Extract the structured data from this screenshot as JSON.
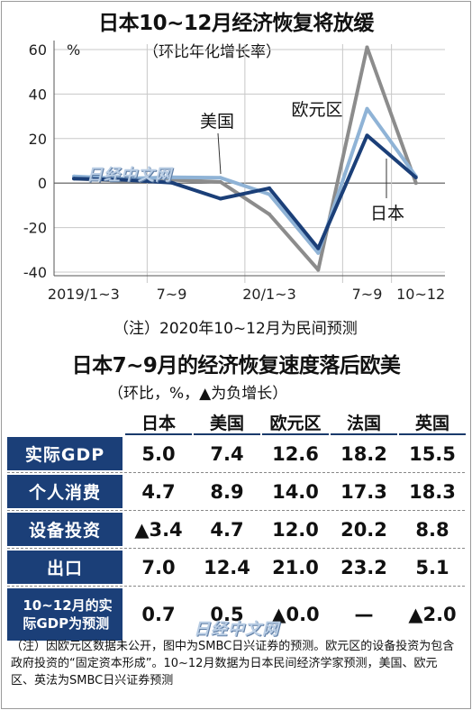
{
  "chart": {
    "title": "日本10~12月经济恢复将放缓",
    "subtitle": "（环比年化增长率）",
    "unit": "%",
    "note": "（注）2020年10~12月为民间预测",
    "watermark": "日经中文网"
  },
  "chart_data": {
    "type": "line",
    "title": "日本10~12月经济恢复将放缓",
    "subtitle": "（环比年化增长率）",
    "ylabel": "%",
    "ylim": [
      -40,
      60
    ],
    "yticks": [
      "60",
      "40",
      "20",
      "0",
      "-20",
      "-40"
    ],
    "x_tick_labels": [
      "2019/1~3",
      "7~9",
      "20/1~3",
      "7~9",
      "10~12"
    ],
    "x": [
      "2019/1~3",
      "2019/4~6",
      "2019/7~9",
      "2019/10~12",
      "2020/1~3",
      "2020/4~6",
      "2020/7~9",
      "2020/10~12"
    ],
    "series": [
      {
        "name": "欧元区",
        "color": "#8c8c8c",
        "values": [
          2,
          1,
          1.5,
          0.5,
          -14,
          -39,
          61,
          0
        ]
      },
      {
        "name": "美国",
        "color": "#8fb3d6",
        "values": [
          3,
          2,
          2.6,
          2.4,
          -5,
          -31.4,
          33.4,
          3
        ]
      },
      {
        "name": "日本",
        "color": "#1b3f78",
        "values": [
          2,
          1.5,
          0.2,
          -7,
          -2.3,
          -29.3,
          21.4,
          2.5
        ]
      }
    ],
    "grid": true,
    "legend": "inline labels"
  },
  "table": {
    "title": "日本7~9月的经济恢复速度落后欧美",
    "subtitle": "（环比，%，▲为负增长）",
    "columns": [
      "日本",
      "美国",
      "欧元区",
      "法国",
      "英国"
    ],
    "rows": [
      {
        "label": "实际GDP",
        "values": [
          "5.0",
          "7.4",
          "12.6",
          "18.2",
          "15.5"
        ]
      },
      {
        "label": "个人消费",
        "values": [
          "4.7",
          "8.9",
          "14.0",
          "17.3",
          "18.3"
        ]
      },
      {
        "label": "设备投资",
        "values": [
          "▲3.4",
          "4.7",
          "12.0",
          "20.2",
          "8.8"
        ]
      },
      {
        "label": "出口",
        "values": [
          "7.0",
          "12.4",
          "21.0",
          "23.2",
          "5.1"
        ]
      },
      {
        "label_line1": "10~12月的实",
        "label_line2": "际GDP为预测",
        "values": [
          "0.7",
          "0.5",
          "▲0.0",
          "—",
          "▲2.0"
        ]
      }
    ]
  },
  "footnote": "（注）因欧元区数据未公开，图中为SMBC日兴证券的预测。欧元区的设备投资为包含政府投资的“固定资本形成”。10~12月数据为日本民间经济学家预测，美国、欧元区、英法为SMBC日兴证券预测",
  "colors": {
    "navy": "#1b3f78",
    "lightblue": "#8fb3d6",
    "gray": "#8c8c8c"
  }
}
